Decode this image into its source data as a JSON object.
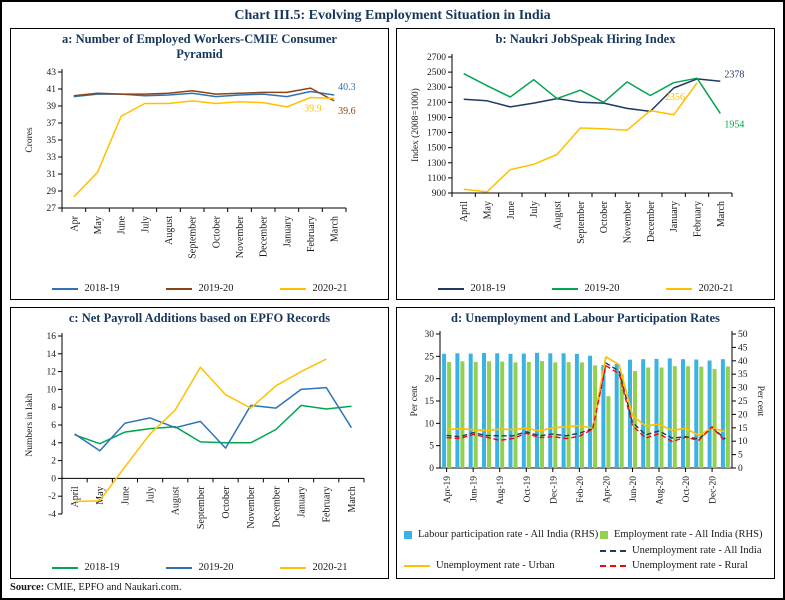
{
  "window": {
    "title": "Chart III.5: Evolving Employment Situation in India"
  },
  "source": {
    "label": "Source:",
    "text": " CMIE, EPFO and Naukari.com."
  },
  "colors": {
    "title_navy": "#17365d",
    "frame_black": "#000000",
    "blue": "#2e74b5",
    "brown": "#8c4316",
    "yellow": "#ffc000",
    "navy": "#1f3864",
    "green": "#00a651",
    "bar_blue": "#3ab2e6",
    "bar_green": "#92d050",
    "red": "#ff0000"
  },
  "chart_data": [
    {
      "id": "a",
      "type": "line",
      "title": "a: Number of Employed Workers-CMIE Consumer Pyramid",
      "ylabel": "Crores",
      "ylim": [
        27,
        43
      ],
      "ytick_step": 2,
      "grid": false,
      "legend_position": "bottom",
      "categories": [
        "Apr",
        "May",
        "June",
        "July",
        "August",
        "September",
        "October",
        "November",
        "December",
        "January",
        "February",
        "March"
      ],
      "series": [
        {
          "name": "2018-19",
          "color": "#2e74b5",
          "values": [
            40.1,
            40.4,
            40.4,
            40.2,
            40.3,
            40.5,
            40.1,
            40.3,
            40.4,
            40.1,
            40.7,
            40.3
          ],
          "end_label": "40.3",
          "end_label_offset": [
            4,
            -5
          ]
        },
        {
          "name": "2019-20",
          "color": "#8c4316",
          "values": [
            40.2,
            40.5,
            40.4,
            40.4,
            40.5,
            40.8,
            40.4,
            40.5,
            40.6,
            40.6,
            41.1,
            39.6
          ],
          "end_label": "39.6",
          "end_label_offset": [
            4,
            13
          ]
        },
        {
          "name": "2020-21",
          "color": "#ffc000",
          "values": [
            28.3,
            31.2,
            37.8,
            39.3,
            39.3,
            39.6,
            39.3,
            39.5,
            39.4,
            38.9,
            40.0,
            39.9
          ],
          "end_label": "39.9",
          "end_label_offset": [
            -30,
            13
          ]
        }
      ]
    },
    {
      "id": "b",
      "type": "line",
      "title": "b: Naukri JobSpeak Hiring Index",
      "ylabel": "Index (2008=1000)",
      "ylim": [
        900,
        2700
      ],
      "ytick_step": 200,
      "grid": false,
      "legend_position": "bottom",
      "categories": [
        "April",
        "May",
        "June",
        "July",
        "August",
        "September",
        "October",
        "November",
        "December",
        "January",
        "February",
        "March"
      ],
      "series": [
        {
          "name": "2018-19",
          "color": "#1f3864",
          "values": [
            2140,
            2120,
            2040,
            2090,
            2150,
            2100,
            2090,
            2020,
            1980,
            2290,
            2410,
            2378
          ],
          "end_label": "2378",
          "end_label_offset": [
            4,
            -4
          ]
        },
        {
          "name": "2019-20",
          "color": "#00a651",
          "values": [
            2480,
            2320,
            2170,
            2400,
            2150,
            2260,
            2100,
            2370,
            2190,
            2360,
            2420,
            1954
          ],
          "end_label": "1954",
          "end_label_offset": [
            4,
            14
          ]
        },
        {
          "name": "2020-21",
          "color": "#ffc000",
          "values": [
            950,
            915,
            1210,
            1280,
            1410,
            1760,
            1750,
            1730,
            1990,
            1935,
            2356,
            null
          ],
          "end_label": "2356",
          "end_label_offset": [
            -32,
            17
          ]
        }
      ]
    },
    {
      "id": "c",
      "type": "line",
      "title": "c: Net Payroll Additions based on EPFO Records",
      "ylabel": "Numbers in lakh",
      "ylim": [
        -4,
        16
      ],
      "ytick_step": 2,
      "x_axis_at": 0,
      "grid": false,
      "legend_position": "bottom",
      "categories": [
        "April",
        "May",
        "June",
        "July",
        "August",
        "September",
        "October",
        "November",
        "December",
        "January",
        "February",
        "March"
      ],
      "series": [
        {
          "name": "2018-19",
          "color": "#00a651",
          "values": [
            4.9,
            3.9,
            5.2,
            5.6,
            5.8,
            4.1,
            4.0,
            4.0,
            5.5,
            8.2,
            7.8,
            8.1
          ]
        },
        {
          "name": "2019-20",
          "color": "#2e74b5",
          "values": [
            5.0,
            3.1,
            6.2,
            6.8,
            5.7,
            6.4,
            3.4,
            8.2,
            7.9,
            10.0,
            10.2,
            5.7
          ]
        },
        {
          "name": "2020-21",
          "color": "#ffc000",
          "values": [
            -2.6,
            -2.5,
            1.3,
            5.0,
            7.7,
            12.5,
            9.4,
            7.9,
            10.4,
            12.0,
            13.4,
            null
          ]
        }
      ]
    },
    {
      "id": "d",
      "type": "bar-line",
      "title": "d: Unemployment and Labour Participation Rates",
      "ylabel_left": "Per cent",
      "ylabel_right": "Per cent",
      "ylim_left": [
        0,
        30
      ],
      "ytick_step_left": 5,
      "ylim_right": [
        0,
        50
      ],
      "ytick_step_right": 5,
      "xtick_every": 2,
      "grid": false,
      "legend_position": "bottom",
      "categories": [
        "Apr-19",
        "May-19",
        "Jun-19",
        "Jul-19",
        "Aug-19",
        "Sep-19",
        "Oct-19",
        "Nov-19",
        "Dec-19",
        "Jan-20",
        "Feb-20",
        "Mar-20",
        "Apr-20",
        "May-20",
        "Jun-20",
        "Jul-20",
        "Aug-20",
        "Sep-20",
        "Oct-20",
        "Nov-20",
        "Dec-20",
        "Jan-21"
      ],
      "bar_series": [
        {
          "name": "Employment rate - All India (RHS)",
          "color": "#92d050",
          "axis": "right",
          "slot": 1,
          "values": [
            39.5,
            39.8,
            39.6,
            39.8,
            39.7,
            39.4,
            39.6,
            39.9,
            39.4,
            39.5,
            39.4,
            38.3,
            26.8,
            35.0,
            36.2,
            37.5,
            37.5,
            38.0,
            38.0,
            37.8,
            36.9,
            37.9
          ]
        },
        {
          "name": "Labour participation rate - All India (RHS)",
          "color": "#3ab2e6",
          "axis": "right",
          "slot": 0,
          "values": [
            42.6,
            42.8,
            42.7,
            42.9,
            42.8,
            42.6,
            42.7,
            43.0,
            42.8,
            42.8,
            42.6,
            41.9,
            38.4,
            38.8,
            40.4,
            40.6,
            40.7,
            40.9,
            40.6,
            40.5,
            40.1,
            40.6
          ]
        }
      ],
      "line_series": [
        {
          "name": "Unemployment rate - All India",
          "color": "#1f3864",
          "dash": true,
          "axis": "left",
          "values": [
            7.3,
            7.0,
            7.9,
            7.3,
            7.2,
            7.2,
            8.1,
            7.2,
            7.6,
            7.2,
            7.8,
            8.8,
            23.5,
            21.7,
            10.2,
            7.4,
            8.3,
            6.7,
            7.0,
            6.5,
            9.1,
            6.5
          ]
        },
        {
          "name": "Unemployment rate - Urban",
          "color": "#ffc000",
          "dash": false,
          "axis": "left",
          "values": [
            8.6,
            8.8,
            8.6,
            8.4,
            8.7,
            8.6,
            8.9,
            8.3,
            9.0,
            9.2,
            9.5,
            8.9,
            24.9,
            23.1,
            11.7,
            9.4,
            9.8,
            8.4,
            8.9,
            7.3,
            9.0,
            8.1
          ]
        },
        {
          "name": "Unemployment rate - Rural",
          "color": "#ff0000",
          "dash": true,
          "axis": "left",
          "values": [
            6.8,
            6.6,
            7.5,
            6.9,
            6.2,
            6.6,
            7.8,
            6.8,
            7.0,
            6.6,
            7.1,
            8.7,
            22.9,
            21.1,
            9.5,
            6.7,
            7.7,
            5.9,
            6.9,
            6.2,
            9.2,
            5.9
          ]
        }
      ]
    }
  ]
}
